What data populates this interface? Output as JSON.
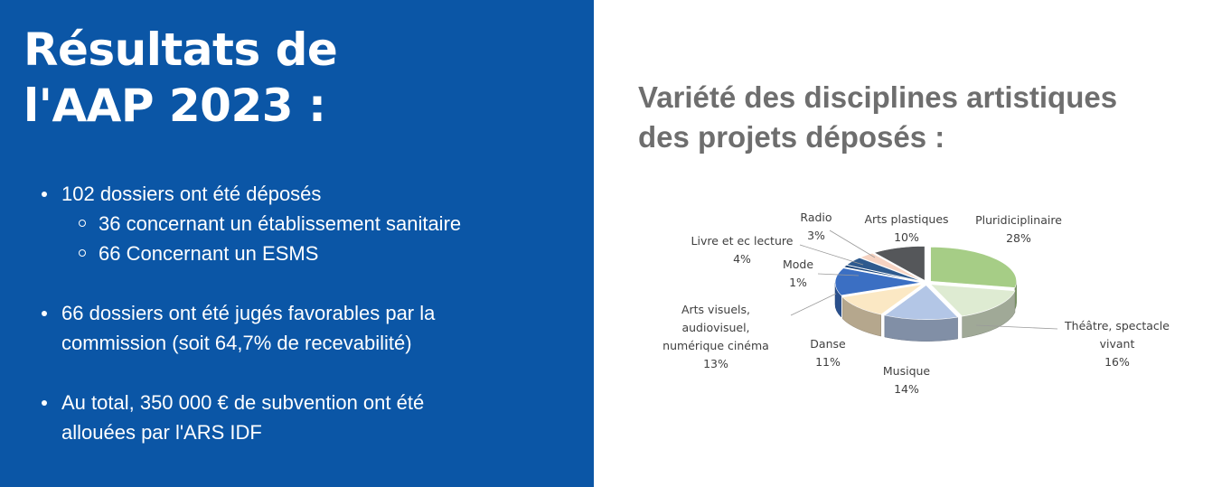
{
  "left_panel": {
    "title_lines": [
      "Résultats de",
      "l'AAP 2023 :"
    ],
    "bullet1": {
      "text": "102 dossiers ont été déposés",
      "subs": [
        "36 concernant un établissement sanitaire",
        "66 Concernant un ESMS"
      ]
    },
    "bullet2": [
      "66 dossiers ont été jugés favorables par la",
      "commission (soit 64,7% de recevabilité)"
    ],
    "bullet3": [
      "Au total, 350 000 € de subvention ont été",
      "allouées par l'ARS IDF"
    ],
    "background": "#0b56a6"
  },
  "right_panel": {
    "heading_lines": [
      "Variété des disciplines artistiques",
      "des projets déposés :"
    ]
  },
  "chart_data": {
    "type": "pie",
    "title": "",
    "start_angle_deg": -90,
    "direction": "clockwise",
    "style": "3d-exploded",
    "slices": [
      {
        "label_lines": [
          "Pluridiciplinaire"
        ],
        "pct_label": "28%",
        "value": 28,
        "color": "#a6cd86"
      },
      {
        "label_lines": [
          "Théâtre, spectacle",
          "vivant"
        ],
        "pct_label": "16%",
        "value": 16,
        "color": "#deebd2"
      },
      {
        "label_lines": [
          "Musique"
        ],
        "pct_label": "14%",
        "value": 14,
        "color": "#b3c6e6"
      },
      {
        "label_lines": [
          "Danse"
        ],
        "pct_label": "11%",
        "value": 11,
        "color": "#fbe8c4"
      },
      {
        "label_lines": [
          "Arts visuels,",
          "audiovisuel,",
          "numérique cinéma"
        ],
        "pct_label": "13%",
        "value": 13,
        "color": "#3b6fc3"
      },
      {
        "label_lines": [
          "Mode"
        ],
        "pct_label": "1%",
        "value": 1,
        "color": "#0f3b73"
      },
      {
        "label_lines": [
          "Livre et ec lecture"
        ],
        "pct_label": "4%",
        "value": 4,
        "color": "#2e5a8e"
      },
      {
        "label_lines": [
          "Radio"
        ],
        "pct_label": "3%",
        "value": 3,
        "color": "#f6d3c2"
      },
      {
        "label_lines": [
          "Arts plastiques"
        ],
        "pct_label": "10%",
        "value": 10,
        "color": "#55575a"
      }
    ]
  }
}
